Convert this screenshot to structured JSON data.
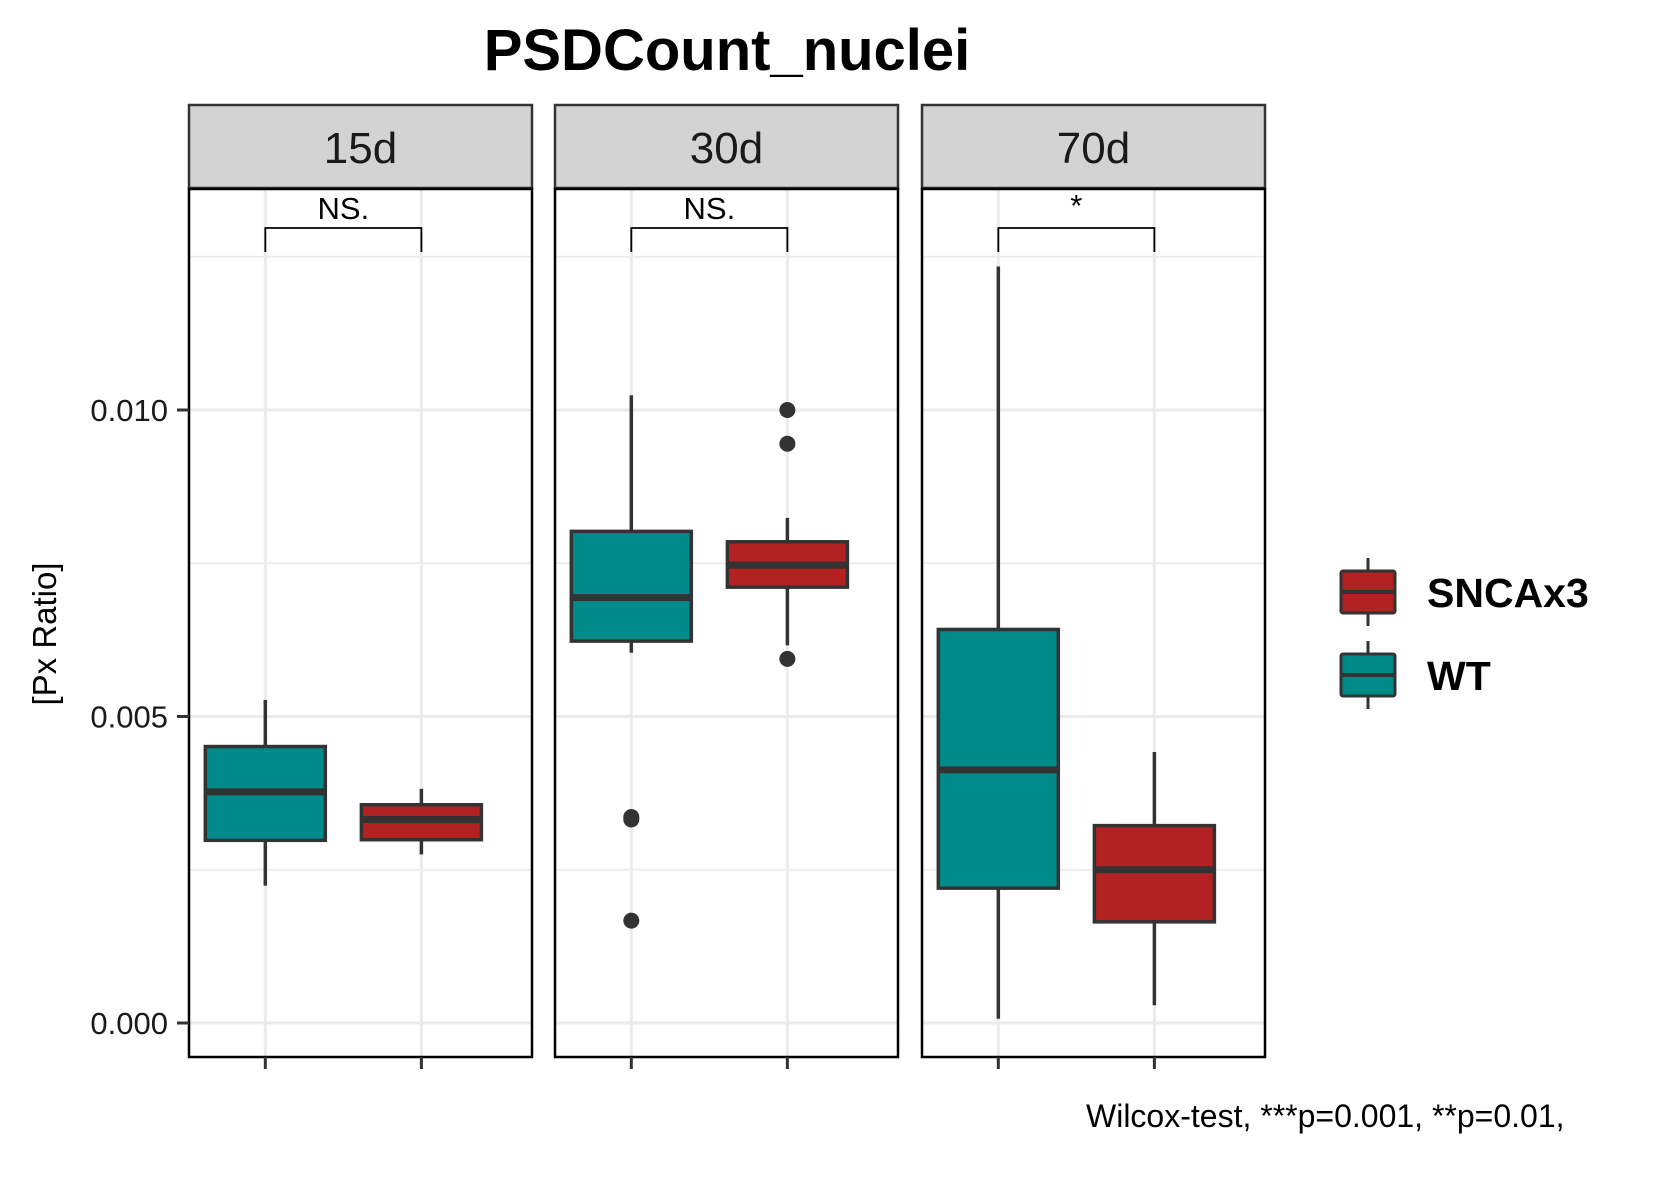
{
  "chart_data": {
    "type": "boxplot",
    "title": "PSDCount_nuclei",
    "ylabel": "[Px Ratio]",
    "xlabel": "",
    "ylim": [
      -0.00055,
      0.0141
    ],
    "yticks": [
      0.0,
      0.005,
      0.01
    ],
    "ytick_labels": [
      "0.000",
      "0.005",
      "0.010"
    ],
    "grid": true,
    "facets": [
      "15d",
      "30d",
      "70d"
    ],
    "groups": [
      "WT",
      "SNCAx3"
    ],
    "colors": {
      "WT": "#008b8b",
      "SNCAx3": "#b22222",
      "outline": "#333333"
    },
    "legend": {
      "position": "right",
      "entries": [
        {
          "label": "SNCAx3",
          "group": "SNCAx3"
        },
        {
          "label": "WT",
          "group": "WT"
        }
      ]
    },
    "panels": [
      {
        "facet": "15d",
        "significance": "NS.",
        "boxes": [
          {
            "group": "WT",
            "lower_whisker": 0.00224,
            "q1": 0.00298,
            "median": 0.00377,
            "q3": 0.00451,
            "upper_whisker": 0.00527,
            "outliers": []
          },
          {
            "group": "SNCAx3",
            "lower_whisker": 0.00275,
            "q1": 0.00299,
            "median": 0.00332,
            "q3": 0.00356,
            "upper_whisker": 0.00382,
            "outliers": []
          }
        ]
      },
      {
        "facet": "30d",
        "significance": "NS.",
        "boxes": [
          {
            "group": "WT",
            "lower_whisker": 0.00604,
            "q1": 0.00623,
            "median": 0.00694,
            "q3": 0.00802,
            "upper_whisker": 0.01024,
            "outliers": [
              0.00336,
              0.00332,
              0.00167
            ]
          },
          {
            "group": "SNCAx3",
            "lower_whisker": 0.00616,
            "q1": 0.00711,
            "median": 0.00747,
            "q3": 0.00785,
            "upper_whisker": 0.00824,
            "outliers": [
              0.01,
              0.00945,
              0.00594
            ]
          }
        ]
      },
      {
        "facet": "70d",
        "significance": "*",
        "boxes": [
          {
            "group": "WT",
            "lower_whisker": 7e-05,
            "q1": 0.0022,
            "median": 0.00413,
            "q3": 0.00642,
            "upper_whisker": 0.01234,
            "outliers": []
          },
          {
            "group": "SNCAx3",
            "lower_whisker": 0.00029,
            "q1": 0.00165,
            "median": 0.0025,
            "q3": 0.00322,
            "upper_whisker": 0.00442,
            "outliers": []
          }
        ]
      }
    ],
    "caption": "Wilcox-test, ***p=0.001, **p=0.01,"
  }
}
